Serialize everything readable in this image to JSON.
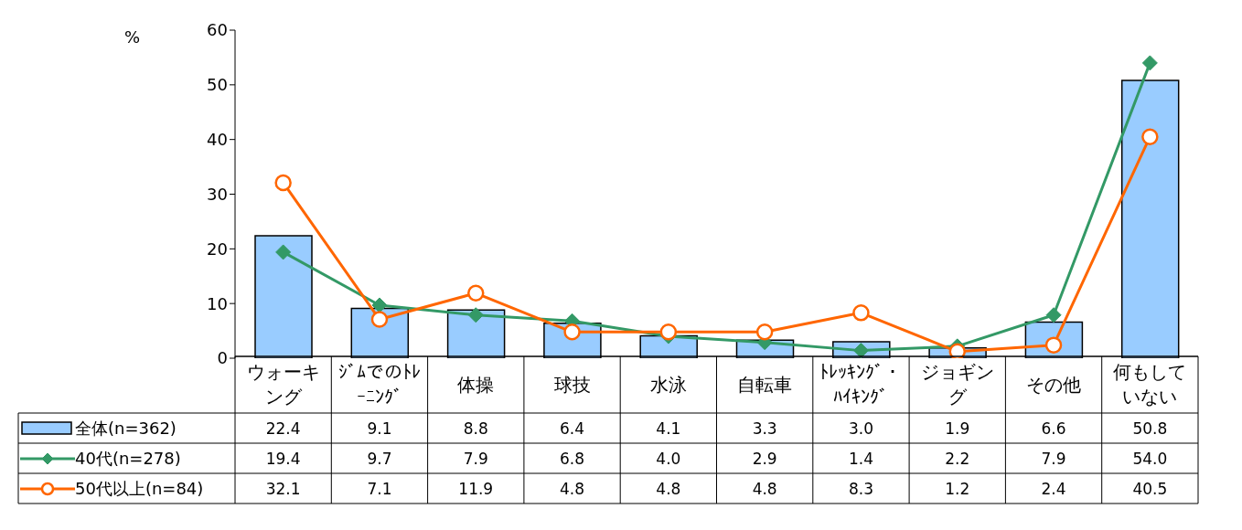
{
  "chart_data": {
    "type": "bar",
    "ylabel": "%",
    "categories": [
      "ウォーキング",
      "ｼﾞﾑでのﾄﾚｰﾆﾝｸﾞ",
      "体操",
      "球技",
      "水泳",
      "自転車",
      "ﾄﾚｯｷﾝｸﾞ・ﾊｲｷﾝｸﾞ",
      "ジョギング",
      "その他",
      "何もしていない"
    ],
    "series": [
      {
        "name": "全体(n=362)",
        "color": "#99ccff",
        "values": [
          22.4,
          9.1,
          8.8,
          6.4,
          4.1,
          3.3,
          3.0,
          1.9,
          6.6,
          50.8
        ],
        "value_labels": [
          "22.4",
          "9.1",
          "8.8",
          "6.4",
          "4.1",
          "3.3",
          "3.0",
          "1.9",
          "6.6",
          "50.8"
        ]
      },
      {
        "name": "40代(n=278)",
        "type": "line",
        "color": "#339966",
        "marker": "diamond",
        "values": [
          19.4,
          9.7,
          7.9,
          6.8,
          4.0,
          2.9,
          1.4,
          2.2,
          7.9,
          54.0
        ],
        "value_labels": [
          "19.4",
          "9.7",
          "7.9",
          "6.8",
          "4.0",
          "2.9",
          "1.4",
          "2.2",
          "7.9",
          "54.0"
        ]
      },
      {
        "name": "50代以上(n=84)",
        "type": "line",
        "color": "#ff6600",
        "marker": "circle",
        "values": [
          32.1,
          7.1,
          11.9,
          4.8,
          4.8,
          4.8,
          8.3,
          1.2,
          2.4,
          40.5
        ],
        "value_labels": [
          "32.1",
          "7.1",
          "11.9",
          "4.8",
          "4.8",
          "4.8",
          "8.3",
          "1.2",
          "2.4",
          "40.5"
        ]
      }
    ],
    "ylim": [
      0,
      60
    ],
    "yticks": [
      0,
      10,
      20,
      30,
      40,
      50,
      60
    ],
    "legend": "bottom",
    "line_style": "solid"
  }
}
